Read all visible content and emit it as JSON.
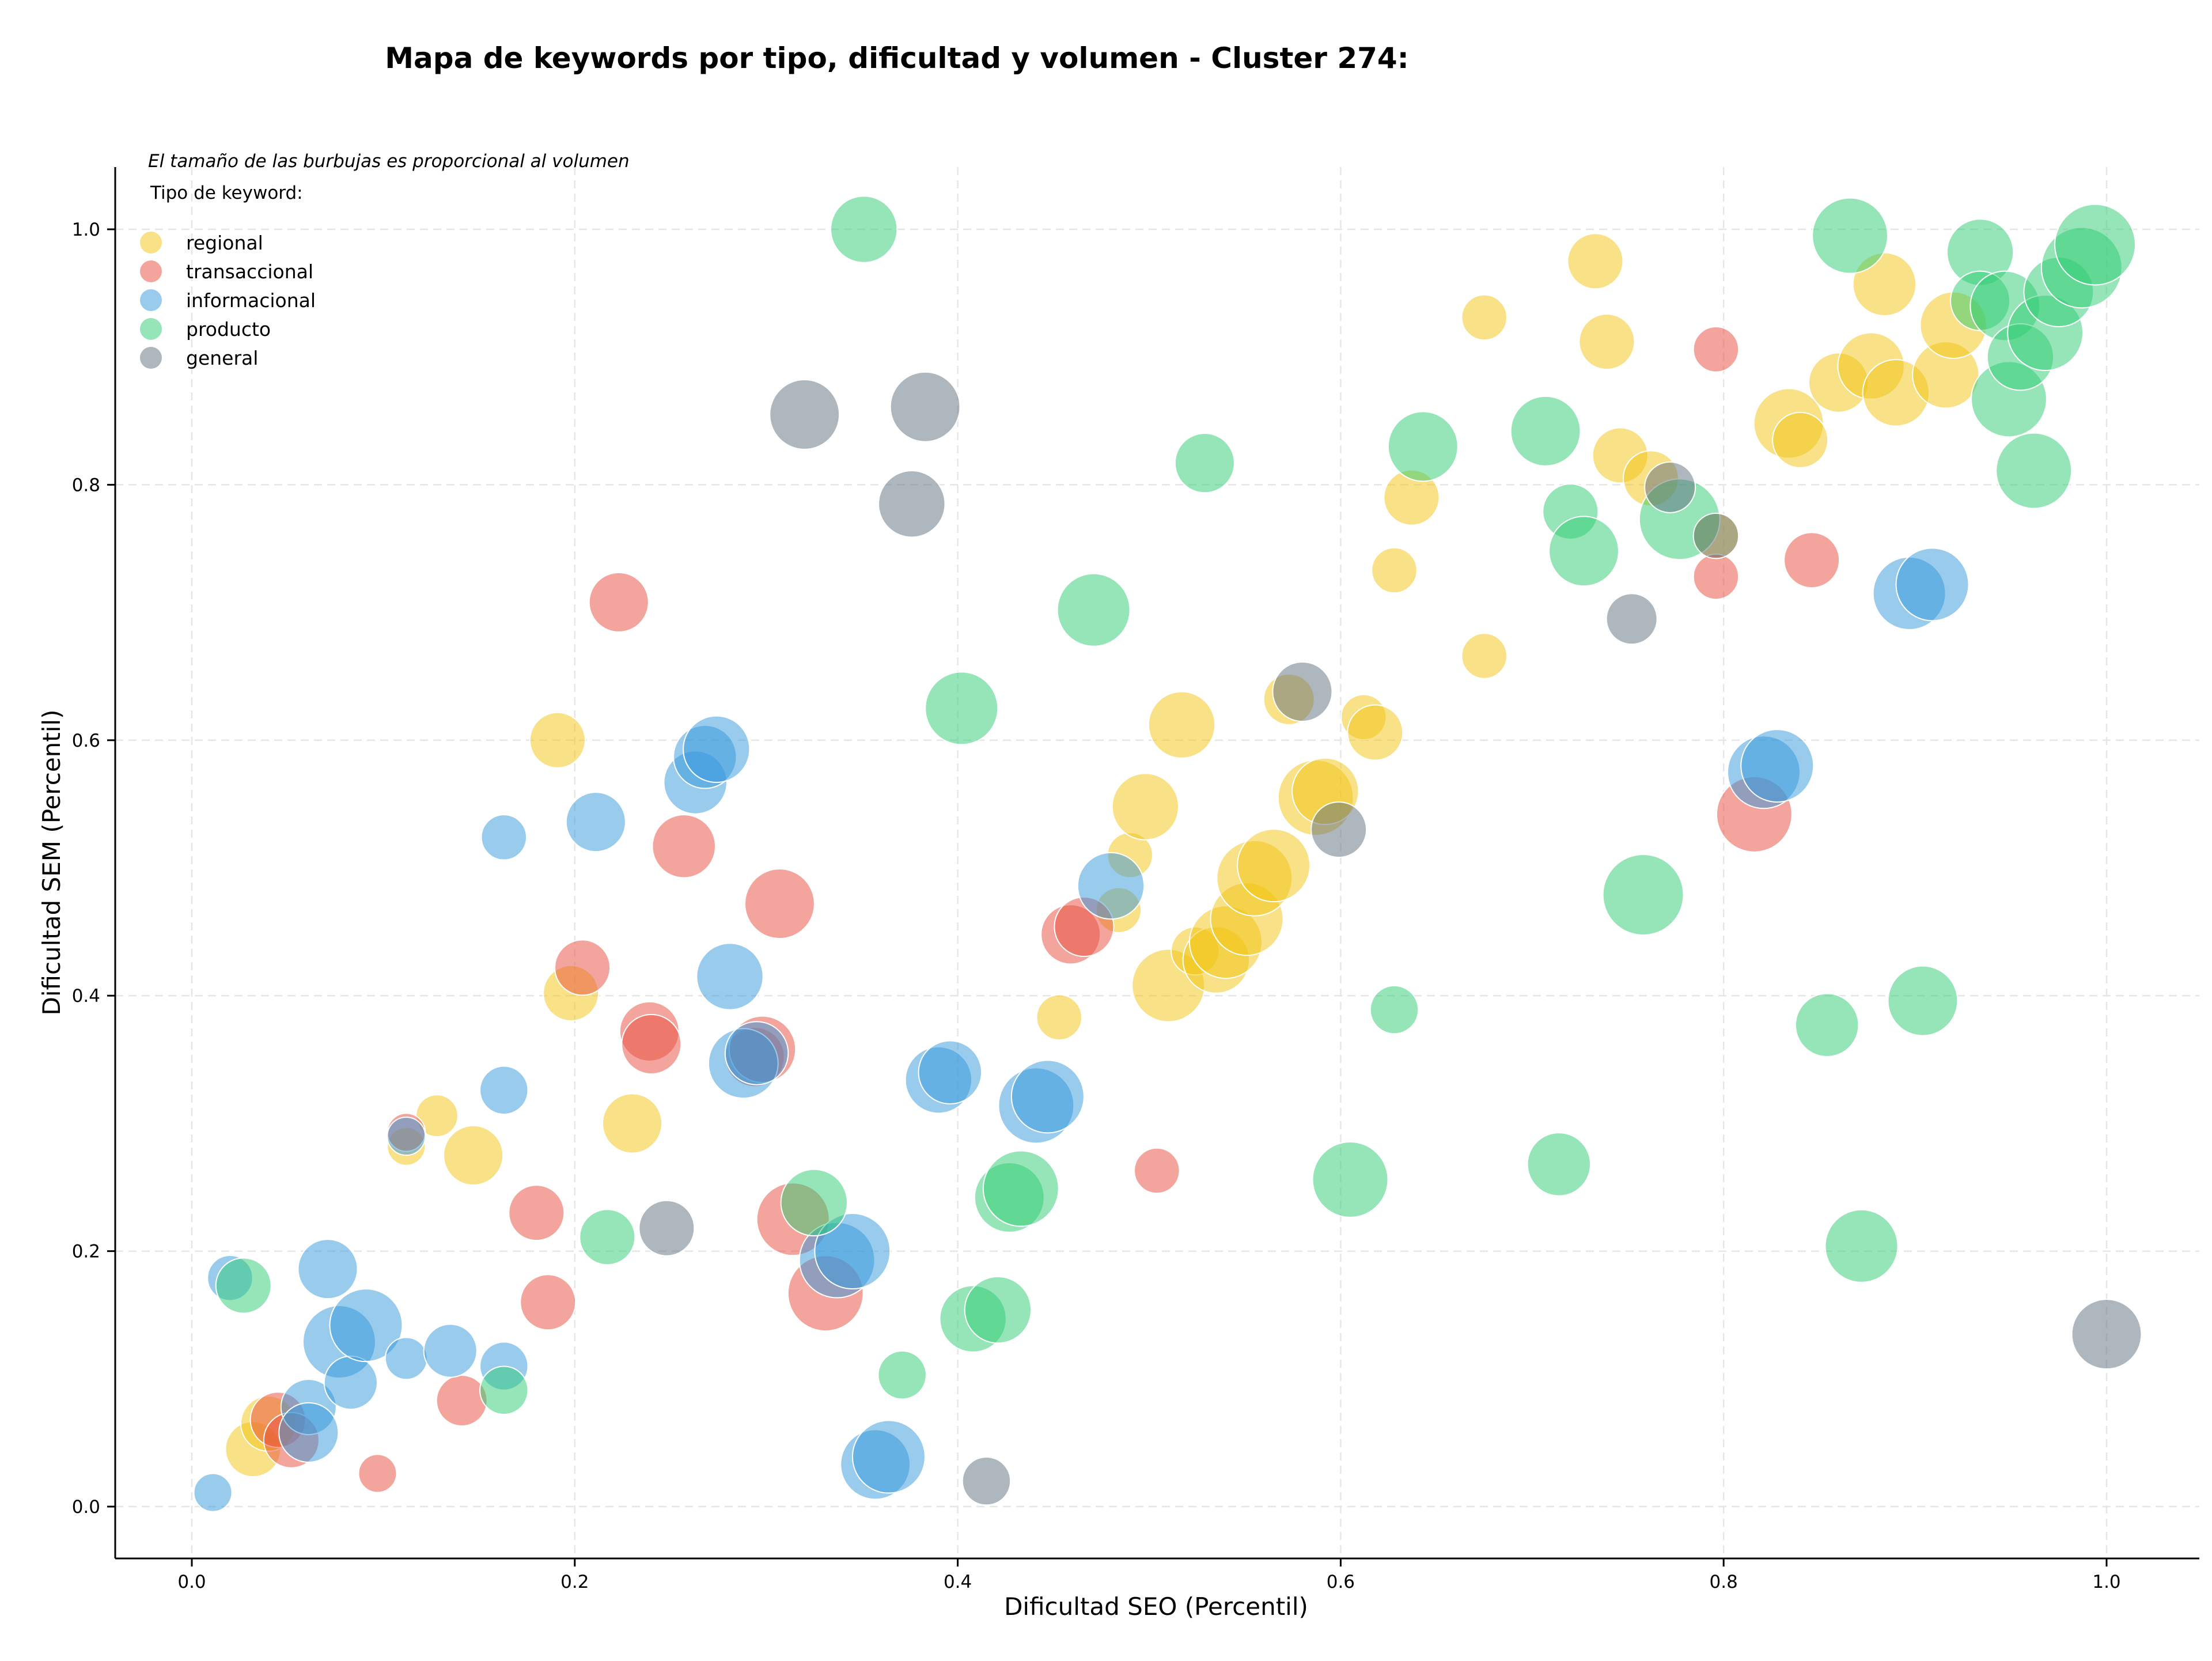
{
  "chart_data": {
    "type": "scatter",
    "title": "Mapa de keywords por tipo, dificultad y volumen - Cluster 274:",
    "xlabel": "Dificultad SEO (Percentil)",
    "ylabel": "Dificultad SEM (Percentil)",
    "xlim": [
      -0.04,
      1.05
    ],
    "ylim": [
      -0.04,
      1.05
    ],
    "x_ticks": [
      "0.0",
      "0.2",
      "0.4",
      "0.6",
      "0.8",
      "1.0"
    ],
    "y_ticks": [
      "0.0",
      "0.2",
      "0.4",
      "0.6",
      "0.8",
      "1.0"
    ],
    "grid": true,
    "annotation": "El tamaño de las burbujas es proporcional al volumen",
    "legend": {
      "title": "Tipo de keyword:",
      "placement": "top-left"
    },
    "size_encoding": "volumen",
    "series": [
      {
        "name": "regional",
        "color": "#f1c40f",
        "points": [
          {
            "x": 0.032,
            "y": 0.045,
            "volume": 4
          },
          {
            "x": 0.04,
            "y": 0.065,
            "volume": 4
          },
          {
            "x": 0.112,
            "y": 0.282,
            "volume": 1
          },
          {
            "x": 0.128,
            "y": 0.306,
            "volume": 1.5
          },
          {
            "x": 0.147,
            "y": 0.275,
            "volume": 5
          },
          {
            "x": 0.191,
            "y": 0.6,
            "volume": 4
          },
          {
            "x": 0.198,
            "y": 0.402,
            "volume": 4
          },
          {
            "x": 0.23,
            "y": 0.3,
            "volume": 5
          },
          {
            "x": 0.453,
            "y": 0.383,
            "volume": 2
          },
          {
            "x": 0.484,
            "y": 0.467,
            "volume": 2
          },
          {
            "x": 0.49,
            "y": 0.51,
            "volume": 2
          },
          {
            "x": 0.498,
            "y": 0.548,
            "volume": 7
          },
          {
            "x": 0.51,
            "y": 0.408,
            "volume": 9
          },
          {
            "x": 0.517,
            "y": 0.612,
            "volume": 7
          },
          {
            "x": 0.524,
            "y": 0.435,
            "volume": 2.5
          },
          {
            "x": 0.535,
            "y": 0.428,
            "volume": 7
          },
          {
            "x": 0.54,
            "y": 0.442,
            "volume": 9
          },
          {
            "x": 0.551,
            "y": 0.46,
            "volume": 9
          },
          {
            "x": 0.555,
            "y": 0.492,
            "volume": 10
          },
          {
            "x": 0.565,
            "y": 0.502,
            "volume": 9
          },
          {
            "x": 0.573,
            "y": 0.632,
            "volume": 3
          },
          {
            "x": 0.587,
            "y": 0.555,
            "volume": 10
          },
          {
            "x": 0.592,
            "y": 0.56,
            "volume": 7
          },
          {
            "x": 0.612,
            "y": 0.618,
            "volume": 2
          },
          {
            "x": 0.618,
            "y": 0.606,
            "volume": 4
          },
          {
            "x": 0.628,
            "y": 0.733,
            "volume": 2
          },
          {
            "x": 0.637,
            "y": 0.79,
            "volume": 4
          },
          {
            "x": 0.675,
            "y": 0.931,
            "volume": 2
          },
          {
            "x": 0.675,
            "y": 0.666,
            "volume": 2
          },
          {
            "x": 0.733,
            "y": 0.975,
            "volume": 4
          },
          {
            "x": 0.739,
            "y": 0.912,
            "volume": 4
          },
          {
            "x": 0.746,
            "y": 0.823,
            "volume": 4
          },
          {
            "x": 0.762,
            "y": 0.805,
            "volume": 4
          },
          {
            "x": 0.796,
            "y": 0.76,
            "volume": 2
          },
          {
            "x": 0.834,
            "y": 0.848,
            "volume": 8
          },
          {
            "x": 0.84,
            "y": 0.835,
            "volume": 4
          },
          {
            "x": 0.86,
            "y": 0.88,
            "volume": 5
          },
          {
            "x": 0.877,
            "y": 0.893,
            "volume": 7
          },
          {
            "x": 0.884,
            "y": 0.957,
            "volume": 6
          },
          {
            "x": 0.89,
            "y": 0.872,
            "volume": 7
          },
          {
            "x": 0.916,
            "y": 0.886,
            "volume": 7
          },
          {
            "x": 0.92,
            "y": 0.925,
            "volume": 7
          }
        ]
      },
      {
        "name": "transaccional",
        "color": "#e74c3c",
        "points": [
          {
            "x": 0.045,
            "y": 0.068,
            "volume": 4
          },
          {
            "x": 0.052,
            "y": 0.052,
            "volume": 4
          },
          {
            "x": 0.097,
            "y": 0.026,
            "volume": 1
          },
          {
            "x": 0.112,
            "y": 0.293,
            "volume": 1
          },
          {
            "x": 0.141,
            "y": 0.083,
            "volume": 3
          },
          {
            "x": 0.18,
            "y": 0.23,
            "volume": 4
          },
          {
            "x": 0.186,
            "y": 0.16,
            "volume": 4
          },
          {
            "x": 0.204,
            "y": 0.422,
            "volume": 4
          },
          {
            "x": 0.223,
            "y": 0.708,
            "volume": 5
          },
          {
            "x": 0.239,
            "y": 0.372,
            "volume": 5
          },
          {
            "x": 0.24,
            "y": 0.362,
            "volume": 5
          },
          {
            "x": 0.257,
            "y": 0.517,
            "volume": 6
          },
          {
            "x": 0.294,
            "y": 0.352,
            "volume": 5
          },
          {
            "x": 0.298,
            "y": 0.358,
            "volume": 7
          },
          {
            "x": 0.307,
            "y": 0.472,
            "volume": 8
          },
          {
            "x": 0.314,
            "y": 0.225,
            "volume": 9
          },
          {
            "x": 0.331,
            "y": 0.167,
            "volume": 10
          },
          {
            "x": 0.459,
            "y": 0.448,
            "volume": 5
          },
          {
            "x": 0.466,
            "y": 0.454,
            "volume": 5
          },
          {
            "x": 0.504,
            "y": 0.263,
            "volume": 2
          },
          {
            "x": 0.796,
            "y": 0.906,
            "volume": 2
          },
          {
            "x": 0.796,
            "y": 0.728,
            "volume": 2
          },
          {
            "x": 0.816,
            "y": 0.542,
            "volume": 10
          },
          {
            "x": 0.846,
            "y": 0.741,
            "volume": 4
          }
        ]
      },
      {
        "name": "informacional",
        "color": "#3498db",
        "points": [
          {
            "x": 0.011,
            "y": 0.011,
            "volume": 1
          },
          {
            "x": 0.02,
            "y": 0.179,
            "volume": 2
          },
          {
            "x": 0.061,
            "y": 0.078,
            "volume": 4
          },
          {
            "x": 0.061,
            "y": 0.058,
            "volume": 5
          },
          {
            "x": 0.071,
            "y": 0.186,
            "volume": 5
          },
          {
            "x": 0.077,
            "y": 0.129,
            "volume": 9
          },
          {
            "x": 0.083,
            "y": 0.097,
            "volume": 3.5
          },
          {
            "x": 0.091,
            "y": 0.142,
            "volume": 9
          },
          {
            "x": 0.112,
            "y": 0.116,
            "volume": 1.5
          },
          {
            "x": 0.112,
            "y": 0.29,
            "volume": 1
          },
          {
            "x": 0.135,
            "y": 0.122,
            "volume": 3.5
          },
          {
            "x": 0.163,
            "y": 0.524,
            "volume": 2
          },
          {
            "x": 0.163,
            "y": 0.326,
            "volume": 2.5
          },
          {
            "x": 0.163,
            "y": 0.11,
            "volume": 2.5
          },
          {
            "x": 0.211,
            "y": 0.536,
            "volume": 5
          },
          {
            "x": 0.263,
            "y": 0.567,
            "volume": 6
          },
          {
            "x": 0.268,
            "y": 0.587,
            "volume": 6
          },
          {
            "x": 0.274,
            "y": 0.593,
            "volume": 7
          },
          {
            "x": 0.281,
            "y": 0.415,
            "volume": 7
          },
          {
            "x": 0.288,
            "y": 0.347,
            "volume": 8
          },
          {
            "x": 0.295,
            "y": 0.355,
            "volume": 6
          },
          {
            "x": 0.337,
            "y": 0.193,
            "volume": 10
          },
          {
            "x": 0.345,
            "y": 0.2,
            "volume": 10
          },
          {
            "x": 0.357,
            "y": 0.033,
            "volume": 8
          },
          {
            "x": 0.364,
            "y": 0.039,
            "volume": 9
          },
          {
            "x": 0.39,
            "y": 0.334,
            "volume": 7
          },
          {
            "x": 0.396,
            "y": 0.34,
            "volume": 6
          },
          {
            "x": 0.441,
            "y": 0.314,
            "volume": 10
          },
          {
            "x": 0.447,
            "y": 0.321,
            "volume": 9
          },
          {
            "x": 0.48,
            "y": 0.486,
            "volume": 7
          },
          {
            "x": 0.821,
            "y": 0.575,
            "volume": 9
          },
          {
            "x": 0.828,
            "y": 0.58,
            "volume": 9
          },
          {
            "x": 0.897,
            "y": 0.715,
            "volume": 9
          },
          {
            "x": 0.909,
            "y": 0.722,
            "volume": 9
          }
        ]
      },
      {
        "name": "producto",
        "color": "#2ecc71",
        "points": [
          {
            "x": 0.027,
            "y": 0.173,
            "volume": 4
          },
          {
            "x": 0.163,
            "y": 0.091,
            "volume": 2.5
          },
          {
            "x": 0.217,
            "y": 0.211,
            "volume": 4
          },
          {
            "x": 0.325,
            "y": 0.238,
            "volume": 7
          },
          {
            "x": 0.351,
            "y": 1.0,
            "volume": 7
          },
          {
            "x": 0.371,
            "y": 0.103,
            "volume": 2.5
          },
          {
            "x": 0.402,
            "y": 0.625,
            "volume": 9
          },
          {
            "x": 0.408,
            "y": 0.147,
            "volume": 7
          },
          {
            "x": 0.421,
            "y": 0.154,
            "volume": 7
          },
          {
            "x": 0.427,
            "y": 0.242,
            "volume": 8
          },
          {
            "x": 0.433,
            "y": 0.249,
            "volume": 10
          },
          {
            "x": 0.471,
            "y": 0.702,
            "volume": 9
          },
          {
            "x": 0.529,
            "y": 0.817,
            "volume": 5
          },
          {
            "x": 0.605,
            "y": 0.256,
            "volume": 10
          },
          {
            "x": 0.628,
            "y": 0.389,
            "volume": 2.5
          },
          {
            "x": 0.643,
            "y": 0.83,
            "volume": 8
          },
          {
            "x": 0.707,
            "y": 0.842,
            "volume": 8
          },
          {
            "x": 0.714,
            "y": 0.268,
            "volume": 6
          },
          {
            "x": 0.72,
            "y": 0.779,
            "volume": 4
          },
          {
            "x": 0.727,
            "y": 0.748,
            "volume": 8
          },
          {
            "x": 0.758,
            "y": 0.479,
            "volume": 12
          },
          {
            "x": 0.777,
            "y": 0.773,
            "volume": 12
          },
          {
            "x": 0.854,
            "y": 0.377,
            "volume": 6
          },
          {
            "x": 0.866,
            "y": 0.995,
            "volume": 10
          },
          {
            "x": 0.872,
            "y": 0.204,
            "volume": 9
          },
          {
            "x": 0.904,
            "y": 0.396,
            "volume": 8
          },
          {
            "x": 0.934,
            "y": 0.982,
            "volume": 7
          },
          {
            "x": 0.934,
            "y": 0.944,
            "volume": 5
          },
          {
            "x": 0.947,
            "y": 0.94,
            "volume": 8
          },
          {
            "x": 0.949,
            "y": 0.867,
            "volume": 10
          },
          {
            "x": 0.955,
            "y": 0.9,
            "volume": 7
          },
          {
            "x": 0.962,
            "y": 0.811,
            "volume": 10
          },
          {
            "x": 0.968,
            "y": 0.919,
            "volume": 10
          },
          {
            "x": 0.975,
            "y": 0.951,
            "volume": 8
          },
          {
            "x": 0.987,
            "y": 0.97,
            "volume": 12
          },
          {
            "x": 0.994,
            "y": 0.988,
            "volume": 12
          }
        ]
      },
      {
        "name": "general",
        "color": "#5d6d7e",
        "points": [
          {
            "x": 0.248,
            "y": 0.218,
            "volume": 4
          },
          {
            "x": 0.32,
            "y": 0.855,
            "volume": 8
          },
          {
            "x": 0.376,
            "y": 0.785,
            "volume": 7
          },
          {
            "x": 0.383,
            "y": 0.861,
            "volume": 8
          },
          {
            "x": 0.415,
            "y": 0.02,
            "volume": 2.5
          },
          {
            "x": 0.58,
            "y": 0.638,
            "volume": 5
          },
          {
            "x": 0.599,
            "y": 0.53,
            "volume": 4
          },
          {
            "x": 0.752,
            "y": 0.695,
            "volume": 3
          },
          {
            "x": 0.772,
            "y": 0.798,
            "volume": 3
          },
          {
            "x": 0.796,
            "y": 0.76,
            "volume": 2
          },
          {
            "x": 1.0,
            "y": 0.135,
            "volume": 8
          }
        ]
      }
    ]
  }
}
